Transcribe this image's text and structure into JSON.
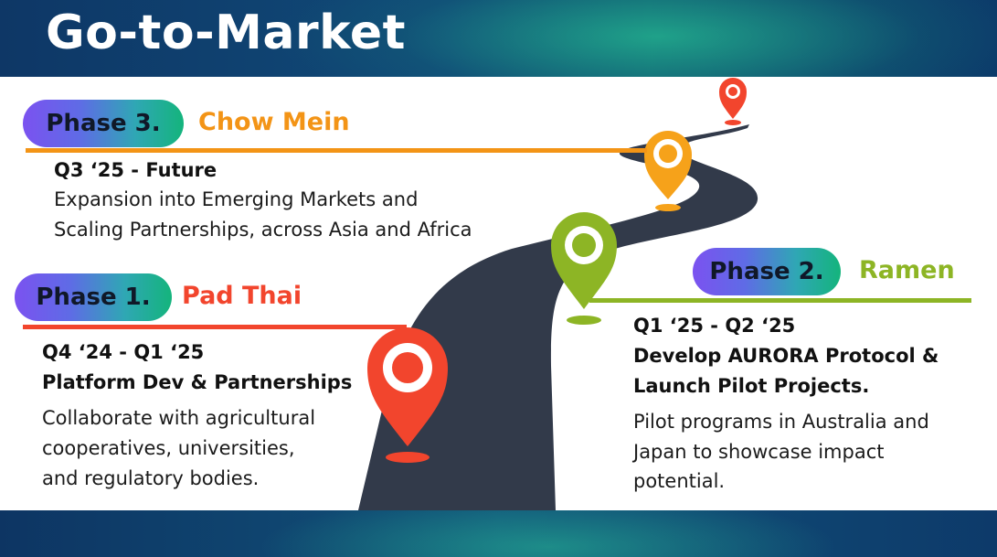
{
  "title": "Go-to-Market",
  "colors": {
    "phase1": "#f2452d",
    "phase2": "#8db525",
    "phase3": "#f39416",
    "road": "#323a4a"
  },
  "phases": {
    "phase3": {
      "label": "Phase 3.",
      "name": "Chow Mein",
      "period": "Q3 ‘25 - Future",
      "line1": "Expansion into Emerging Markets and",
      "line2": "Scaling Partnerships, across Asia and Africa"
    },
    "phase1": {
      "label": "Phase 1.",
      "name": "Pad Thai",
      "period": "Q4 ‘24 - Q1 ‘25",
      "headline": "Platform Dev & Partnerships",
      "line1": "Collaborate with agricultural",
      "line2": "cooperatives, universities,",
      "line3": "and regulatory bodies."
    },
    "phase2": {
      "label": "Phase 2.",
      "name": "Ramen",
      "period": "Q1 ‘25 - Q2 ‘25",
      "headline1": "Develop AURORA Protocol &",
      "headline2": "Launch Pilot Projects.",
      "line1": "Pilot programs in Australia and",
      "line2": "Japan to showcase impact",
      "line3": "potential."
    }
  },
  "icons": [
    "map-pin-icon"
  ]
}
